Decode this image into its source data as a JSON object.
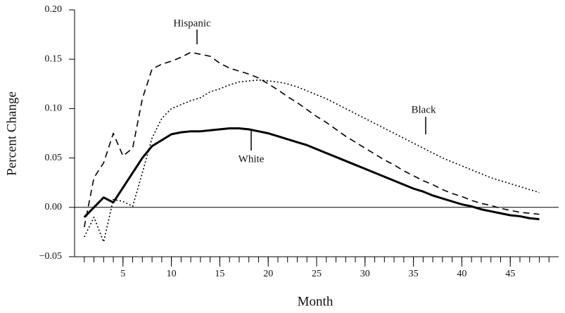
{
  "chart_data": {
    "type": "line",
    "xlabel": "Month",
    "ylabel": "Percent Change",
    "x": [
      1,
      2,
      3,
      4,
      5,
      6,
      7,
      8,
      9,
      10,
      11,
      12,
      13,
      14,
      15,
      16,
      17,
      18,
      19,
      20,
      21,
      22,
      23,
      24,
      25,
      26,
      27,
      28,
      29,
      30,
      31,
      32,
      33,
      34,
      35,
      36,
      37,
      38,
      39,
      40,
      41,
      42,
      43,
      44,
      45,
      46,
      47,
      48
    ],
    "series": [
      {
        "name": "Hispanic",
        "color": "#000",
        "style": "dashed",
        "values": [
          -0.02,
          0.03,
          0.045,
          0.075,
          0.052,
          0.06,
          0.11,
          0.14,
          0.145,
          0.148,
          0.152,
          0.157,
          0.155,
          0.153,
          0.146,
          0.141,
          0.138,
          0.135,
          0.131,
          0.125,
          0.119,
          0.112,
          0.106,
          0.099,
          0.092,
          0.086,
          0.079,
          0.072,
          0.066,
          0.06,
          0.054,
          0.048,
          0.043,
          0.037,
          0.032,
          0.027,
          0.023,
          0.018,
          0.014,
          0.011,
          0.007,
          0.004,
          0.002,
          -0.001,
          -0.003,
          -0.005,
          -0.006,
          -0.007
        ]
      },
      {
        "name": "Black",
        "color": "#000",
        "style": "dotted",
        "values": [
          -0.03,
          -0.01,
          -0.035,
          0.008,
          0.006,
          0.001,
          0.035,
          0.07,
          0.09,
          0.1,
          0.104,
          0.108,
          0.111,
          0.117,
          0.12,
          0.124,
          0.127,
          0.128,
          0.129,
          0.128,
          0.127,
          0.125,
          0.122,
          0.118,
          0.114,
          0.11,
          0.105,
          0.1,
          0.095,
          0.09,
          0.085,
          0.08,
          0.075,
          0.07,
          0.065,
          0.06,
          0.055,
          0.05,
          0.046,
          0.042,
          0.038,
          0.034,
          0.03,
          0.027,
          0.024,
          0.021,
          0.018,
          0.015
        ]
      },
      {
        "name": "White",
        "color": "#000",
        "style": "solid",
        "values": [
          -0.01,
          0.0,
          0.01,
          0.005,
          0.02,
          0.035,
          0.05,
          0.062,
          0.068,
          0.074,
          0.076,
          0.077,
          0.077,
          0.078,
          0.079,
          0.08,
          0.08,
          0.079,
          0.077,
          0.075,
          0.072,
          0.069,
          0.066,
          0.063,
          0.059,
          0.055,
          0.051,
          0.047,
          0.043,
          0.039,
          0.035,
          0.031,
          0.027,
          0.023,
          0.019,
          0.016,
          0.012,
          0.009,
          0.006,
          0.003,
          0.001,
          -0.002,
          -0.004,
          -0.006,
          -0.008,
          -0.009,
          -0.011,
          -0.012
        ]
      }
    ],
    "xlim": [
      0,
      50
    ],
    "xticks": [
      5,
      10,
      15,
      20,
      25,
      30,
      35,
      40,
      45
    ],
    "xminorticks": [
      1,
      2,
      3,
      4,
      5,
      6,
      7,
      8,
      9,
      10,
      11,
      12,
      13,
      14,
      15,
      16,
      17,
      18,
      19,
      20,
      21,
      22,
      23,
      24,
      25,
      26,
      27,
      28,
      29,
      30,
      31,
      32,
      33,
      34,
      35,
      36,
      37,
      38,
      39,
      40,
      41,
      42,
      43,
      44,
      45,
      46,
      47,
      48,
      49
    ],
    "ylim": [
      -0.05,
      0.2
    ],
    "yticks": [
      {
        "value": -0.05,
        "label": "−0.05"
      },
      {
        "value": 0,
        "label": "0.00"
      },
      {
        "value": 0.05,
        "label": "0.05"
      },
      {
        "value": 0.1,
        "label": "0.10"
      },
      {
        "value": 0.15,
        "label": "0.15"
      },
      {
        "value": 0.2,
        "label": "0.20"
      }
    ],
    "zero_line": true
  }
}
